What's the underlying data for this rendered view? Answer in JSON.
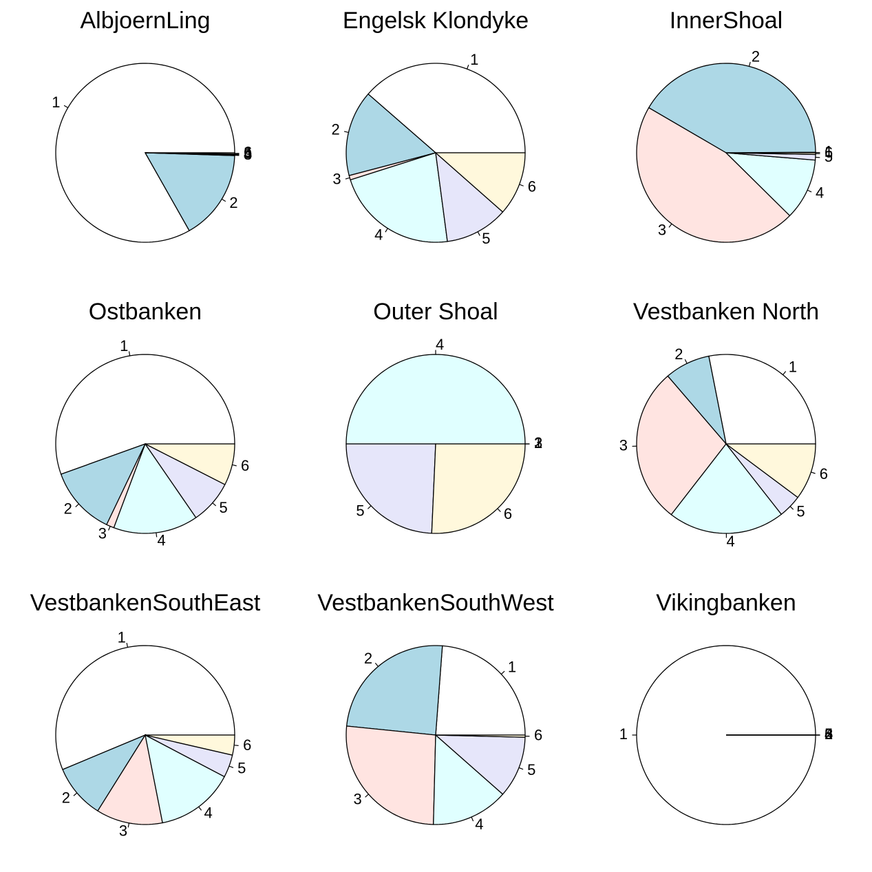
{
  "chart_data": [
    {
      "type": "pie",
      "title": "AlbjoernLing",
      "categories": [
        "1",
        "2",
        "3",
        "4",
        "5",
        "6"
      ],
      "values": [
        83.2,
        16.3,
        0.1,
        0.1,
        0.1,
        0.2
      ],
      "colors": [
        "#ffffff",
        "#add8e6",
        "#ffe4e1",
        "#e0ffff",
        "#e6e6fa",
        "#fff8dc"
      ]
    },
    {
      "type": "pie",
      "title": "Engelsk Klondyke",
      "categories": [
        "1",
        "2",
        "3",
        "4",
        "5",
        "6"
      ],
      "values": [
        38.6,
        15.5,
        0.8,
        22.2,
        11.4,
        11.5
      ],
      "colors": [
        "#ffffff",
        "#add8e6",
        "#ffe4e1",
        "#e0ffff",
        "#e6e6fa",
        "#fff8dc"
      ]
    },
    {
      "type": "pie",
      "title": "InnerShoal",
      "categories": [
        "1",
        "2",
        "3",
        "4",
        "5",
        "6"
      ],
      "values": [
        0.1,
        41.5,
        46.0,
        11.1,
        1.0,
        0.3
      ],
      "colors": [
        "#ffffff",
        "#add8e6",
        "#ffe4e1",
        "#e0ffff",
        "#e6e6fa",
        "#fff8dc"
      ]
    },
    {
      "type": "pie",
      "title": "Ostbanken",
      "categories": [
        "1",
        "2",
        "3",
        "4",
        "5",
        "6"
      ],
      "values": [
        55.5,
        12.4,
        1.4,
        15.3,
        7.9,
        7.5
      ],
      "colors": [
        "#ffffff",
        "#add8e6",
        "#ffe4e1",
        "#e0ffff",
        "#e6e6fa",
        "#fff8dc"
      ]
    },
    {
      "type": "pie",
      "title": "Outer Shoal",
      "categories": [
        "1",
        "2",
        "3",
        "4",
        "5",
        "6"
      ],
      "values": [
        0,
        0,
        0,
        50,
        24.3,
        25.7
      ],
      "colors": [
        "#ffffff",
        "#add8e6",
        "#ffe4e1",
        "#e0ffff",
        "#e6e6fa",
        "#fff8dc"
      ]
    },
    {
      "type": "pie",
      "title": "Vestbanken North",
      "categories": [
        "1",
        "2",
        "3",
        "4",
        "5",
        "6"
      ],
      "values": [
        28.1,
        8.2,
        28.2,
        21.1,
        4.2,
        10.2
      ],
      "colors": [
        "#ffffff",
        "#add8e6",
        "#ffe4e1",
        "#e0ffff",
        "#e6e6fa",
        "#fff8dc"
      ]
    },
    {
      "type": "pie",
      "title": "VestbankenSouthEast",
      "categories": [
        "1",
        "2",
        "3",
        "4",
        "5",
        "6"
      ],
      "values": [
        56.3,
        9.8,
        12.0,
        14.2,
        4.1,
        3.6
      ],
      "colors": [
        "#ffffff",
        "#add8e6",
        "#ffe4e1",
        "#e0ffff",
        "#e6e6fa",
        "#fff8dc"
      ]
    },
    {
      "type": "pie",
      "title": "VestbankenSouthWest",
      "categories": [
        "1",
        "2",
        "3",
        "4",
        "5",
        "6"
      ],
      "values": [
        23.8,
        24.6,
        26.2,
        13.9,
        11.1,
        0.4
      ],
      "colors": [
        "#ffffff",
        "#add8e6",
        "#ffe4e1",
        "#e0ffff",
        "#e6e6fa",
        "#fff8dc"
      ]
    },
    {
      "type": "pie",
      "title": "Vikingbanken",
      "categories": [
        "1",
        "2",
        "3",
        "4",
        "5",
        "6"
      ],
      "values": [
        100,
        0,
        0,
        0,
        0,
        0
      ],
      "colors": [
        "#ffffff",
        "#add8e6",
        "#ffe4e1",
        "#e0ffff",
        "#e6e6fa",
        "#fff8dc"
      ]
    }
  ]
}
